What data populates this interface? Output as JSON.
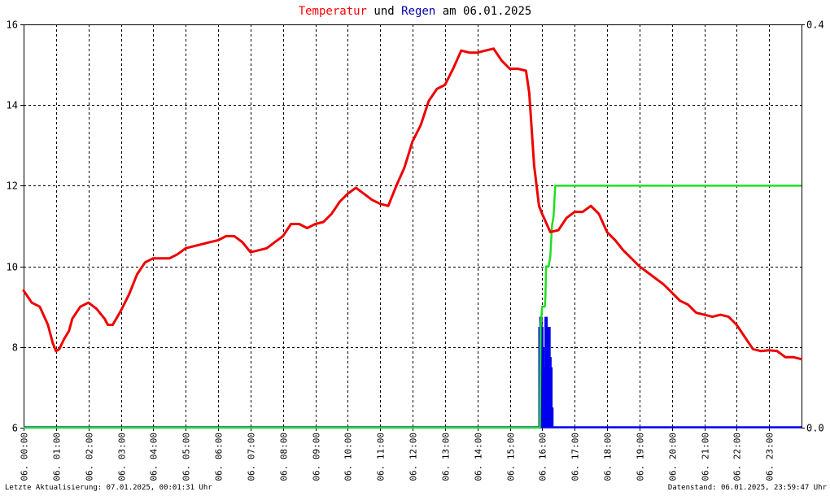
{
  "title": {
    "part1": "Temperatur",
    "part2": " und ",
    "part3": "Regen",
    "part4": " am 06.01.2025",
    "color1": "#ff0000",
    "color2": "#000000",
    "color3": "#0000aa",
    "color4": "#000000"
  },
  "footer": {
    "left": "Letzte Aktualisierung: 07.01.2025, 00:01:31 Uhr",
    "right": "Datenstand: 06.01.2025, 23:59:47 Uhr"
  },
  "colors": {
    "temperature": "#ee0000",
    "rain_rate": "#0000ee",
    "rain_total": "#22dd22",
    "grid": "#000000",
    "frame": "#000000"
  },
  "chart_data": {
    "type": "line",
    "title": "Temperatur und Regen am 06.01.2025",
    "xlabel": "",
    "ylabel_left": "",
    "ylabel_right": "",
    "x_range": [
      0,
      24
    ],
    "ylim_left": [
      6,
      16
    ],
    "ylim_right": [
      0,
      0.4
    ],
    "y_ticks_left": [
      "6",
      "8",
      "10",
      "12",
      "14",
      "16"
    ],
    "y_ticks_right": [
      "0.0",
      "0.4"
    ],
    "x_tick_labels": [
      "06. 00:00",
      "06. 01:00",
      "06. 02:00",
      "06. 03:00",
      "06. 04:00",
      "06. 05:00",
      "06. 06:00",
      "06. 07:00",
      "06. 08:00",
      "06. 09:00",
      "06. 10:00",
      "06. 11:00",
      "06. 12:00",
      "06. 13:00",
      "06. 14:00",
      "06. 15:00",
      "06. 16:00",
      "06. 17:00",
      "06. 18:00",
      "06. 19:00",
      "06. 20:00",
      "06. 21:00",
      "06. 22:00",
      "06. 23:00"
    ],
    "grid": true,
    "series": [
      {
        "name": "Temperatur",
        "axis": "left",
        "x": [
          0,
          0.25,
          0.5,
          0.75,
          0.9,
          1.0,
          1.1,
          1.25,
          1.4,
          1.5,
          1.75,
          2.0,
          2.25,
          2.5,
          2.6,
          2.75,
          3.0,
          3.25,
          3.5,
          3.75,
          4.0,
          4.25,
          4.5,
          4.75,
          5.0,
          5.25,
          5.5,
          5.75,
          6.0,
          6.25,
          6.5,
          6.75,
          7.0,
          7.25,
          7.5,
          7.75,
          8.0,
          8.25,
          8.5,
          8.75,
          9.0,
          9.25,
          9.5,
          9.75,
          10.0,
          10.25,
          10.5,
          10.75,
          11.0,
          11.25,
          11.5,
          11.75,
          12.0,
          12.25,
          12.5,
          12.75,
          13.0,
          13.25,
          13.5,
          13.75,
          14.0,
          14.25,
          14.5,
          14.75,
          15.0,
          15.25,
          15.5,
          15.6,
          15.75,
          15.9,
          16.0,
          16.25,
          16.5,
          16.75,
          17.0,
          17.25,
          17.5,
          17.75,
          18.0,
          18.25,
          18.5,
          18.75,
          19.0,
          19.25,
          19.5,
          19.75,
          20.0,
          20.25,
          20.5,
          20.75,
          21.0,
          21.25,
          21.5,
          21.75,
          22.0,
          22.25,
          22.5,
          22.75,
          23.0,
          23.25,
          23.5,
          23.75,
          23.99
        ],
        "values": [
          9.4,
          9.1,
          9.0,
          8.55,
          8.1,
          7.9,
          7.95,
          8.2,
          8.4,
          8.7,
          9.0,
          9.1,
          8.95,
          8.7,
          8.55,
          8.55,
          8.9,
          9.3,
          9.8,
          10.1,
          10.2,
          10.2,
          10.2,
          10.3,
          10.45,
          10.5,
          10.55,
          10.6,
          10.65,
          10.75,
          10.75,
          10.6,
          10.35,
          10.4,
          10.45,
          10.6,
          10.75,
          11.05,
          11.05,
          10.95,
          11.05,
          11.1,
          11.3,
          11.6,
          11.8,
          11.95,
          11.8,
          11.65,
          11.55,
          11.5,
          12.0,
          12.45,
          13.1,
          13.5,
          14.1,
          14.4,
          14.5,
          14.9,
          15.35,
          15.3,
          15.3,
          15.35,
          15.4,
          15.1,
          14.9,
          14.9,
          14.85,
          14.3,
          12.5,
          11.5,
          11.3,
          10.85,
          10.9,
          11.2,
          11.35,
          11.35,
          11.5,
          11.3,
          10.85,
          10.65,
          10.4,
          10.2,
          10.0,
          9.85,
          9.7,
          9.55,
          9.35,
          9.15,
          9.05,
          8.85,
          8.8,
          8.75,
          8.8,
          8.75,
          8.55,
          8.25,
          7.95,
          7.9,
          7.92,
          7.9,
          7.75,
          7.75,
          7.7
        ]
      },
      {
        "name": "Regen",
        "axis": "right",
        "style": "bars",
        "x": [
          15.93,
          15.96,
          15.99,
          16.02,
          16.07,
          16.12,
          16.15,
          16.18,
          16.21,
          16.24,
          16.27,
          16.3
        ],
        "values": [
          0.1,
          0.11,
          0.1,
          0.08,
          0.06,
          0.11,
          0.1,
          0.08,
          0.1,
          0.07,
          0.06,
          0.02
        ]
      },
      {
        "name": "Regen Summe",
        "axis": "right",
        "x": [
          0,
          15.93,
          15.95,
          16.0,
          16.05,
          16.08,
          16.1,
          16.12,
          16.2,
          16.25,
          16.3,
          16.35,
          16.4,
          16.5,
          17.0,
          20.0,
          23.99
        ],
        "values": [
          0,
          0,
          0.1,
          0.12,
          0.12,
          0.12,
          0.13,
          0.16,
          0.16,
          0.17,
          0.2,
          0.21,
          0.24,
          0.24,
          0.24,
          0.24,
          0.24
        ]
      }
    ]
  }
}
